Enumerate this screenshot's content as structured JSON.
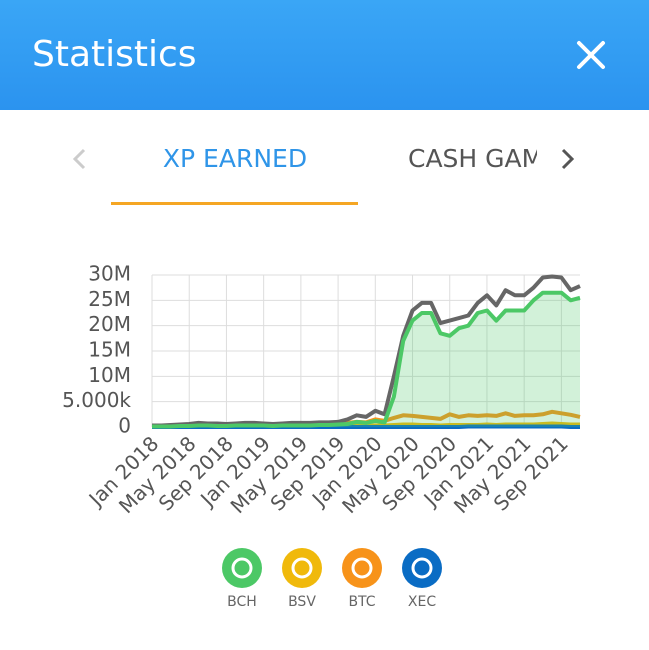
{
  "header": {
    "title": "Statistics"
  },
  "tabs": [
    "XP EARNED",
    "CASH GAMES"
  ],
  "chart_data": {
    "type": "line",
    "categories": [
      "Jan 2018",
      null,
      null,
      null,
      "May 2018",
      null,
      null,
      null,
      "Sep 2018",
      null,
      null,
      null,
      "Jan 2019",
      null,
      null,
      null,
      "May 2019",
      null,
      null,
      null,
      "Sep 2019",
      null,
      null,
      null,
      "Jan 2020",
      null,
      null,
      null,
      "May 2020",
      null,
      null,
      null,
      "Sep 2020",
      null,
      null,
      null,
      "Jan 2021",
      null,
      null,
      null,
      "May 2021",
      null,
      null,
      null,
      "Sep 2021",
      null,
      null
    ],
    "series": [
      {
        "name": "BCH",
        "color": "#4cc866",
        "area": true,
        "values": [
          100000,
          100000,
          100000,
          200000,
          200000,
          300000,
          300000,
          200000,
          200000,
          300000,
          300000,
          300000,
          300000,
          200000,
          300000,
          300000,
          300000,
          300000,
          400000,
          400000,
          500000,
          600000,
          1000000,
          800000,
          1200000,
          900000,
          6000000,
          17000000,
          21000000,
          22500000,
          22500000,
          18500000,
          18000000,
          19500000,
          20000000,
          22500000,
          23000000,
          21000000,
          23000000,
          23000000,
          23000000,
          25000000,
          26500000,
          26500000,
          26500000,
          25000000,
          25500000
        ]
      },
      {
        "name": "BSV",
        "color": "#f0b90b",
        "values": [
          100000,
          100000,
          100000,
          100000,
          100000,
          100000,
          100000,
          100000,
          100000,
          100000,
          100000,
          100000,
          100000,
          100000,
          100000,
          100000,
          100000,
          100000,
          100000,
          100000,
          100000,
          200000,
          200000,
          200000,
          300000,
          300000,
          400000,
          500000,
          500000,
          400000,
          400000,
          300000,
          400000,
          400000,
          400000,
          400000,
          500000,
          400000,
          500000,
          500000,
          500000,
          500000,
          600000,
          700000,
          600000,
          500000,
          500000
        ]
      },
      {
        "name": "BTC",
        "color": "#f7931a",
        "values": [
          300000,
          300000,
          300000,
          400000,
          400000,
          500000,
          500000,
          500000,
          500000,
          500000,
          500000,
          500000,
          500000,
          500000,
          500000,
          500000,
          500000,
          600000,
          600000,
          600000,
          700000,
          800000,
          1000000,
          900000,
          1500000,
          1200000,
          1800000,
          2300000,
          2200000,
          2000000,
          1800000,
          1600000,
          2500000,
          2000000,
          2300000,
          2200000,
          2300000,
          2200000,
          2700000,
          2200000,
          2300000,
          2300000,
          2500000,
          3000000,
          2700000,
          2400000,
          2000000
        ]
      },
      {
        "name": "XEC",
        "color": "#0a6cc4",
        "values": [
          0,
          0,
          0,
          0,
          0,
          0,
          0,
          0,
          0,
          0,
          0,
          0,
          0,
          0,
          0,
          0,
          0,
          0,
          0,
          0,
          0,
          0,
          0,
          0,
          0,
          0,
          0,
          0,
          0,
          0,
          0,
          0,
          0,
          0,
          100000,
          100000,
          100000,
          100000,
          100000,
          100000,
          100000,
          100000,
          100000,
          100000,
          100000,
          0,
          0
        ]
      },
      {
        "color": "#666666",
        "values": [
          300000,
          300000,
          400000,
          500000,
          600000,
          800000,
          700000,
          700000,
          600000,
          700000,
          800000,
          800000,
          700000,
          600000,
          700000,
          800000,
          800000,
          800000,
          900000,
          900000,
          1000000,
          1500000,
          2300000,
          2000000,
          3200000,
          2500000,
          10000000,
          18000000,
          23000000,
          24500000,
          24500000,
          20500000,
          21000000,
          21500000,
          22000000,
          24500000,
          26000000,
          24000000,
          27000000,
          26000000,
          26000000,
          27500000,
          29500000,
          29700000,
          29500000,
          27000000,
          27800000
        ]
      }
    ],
    "ylim": [
      0,
      30000000
    ],
    "yticks": [
      0,
      {
        "value": 5000000,
        "label": "5.000k"
      },
      {
        "value": 10000000,
        "label": "10M"
      },
      {
        "value": 15000000,
        "label": "15M"
      },
      {
        "value": 20000000,
        "label": "20M"
      },
      {
        "value": 25000000,
        "label": "25M"
      },
      {
        "value": 30000000,
        "label": "30M"
      }
    ],
    "grid": true
  }
}
